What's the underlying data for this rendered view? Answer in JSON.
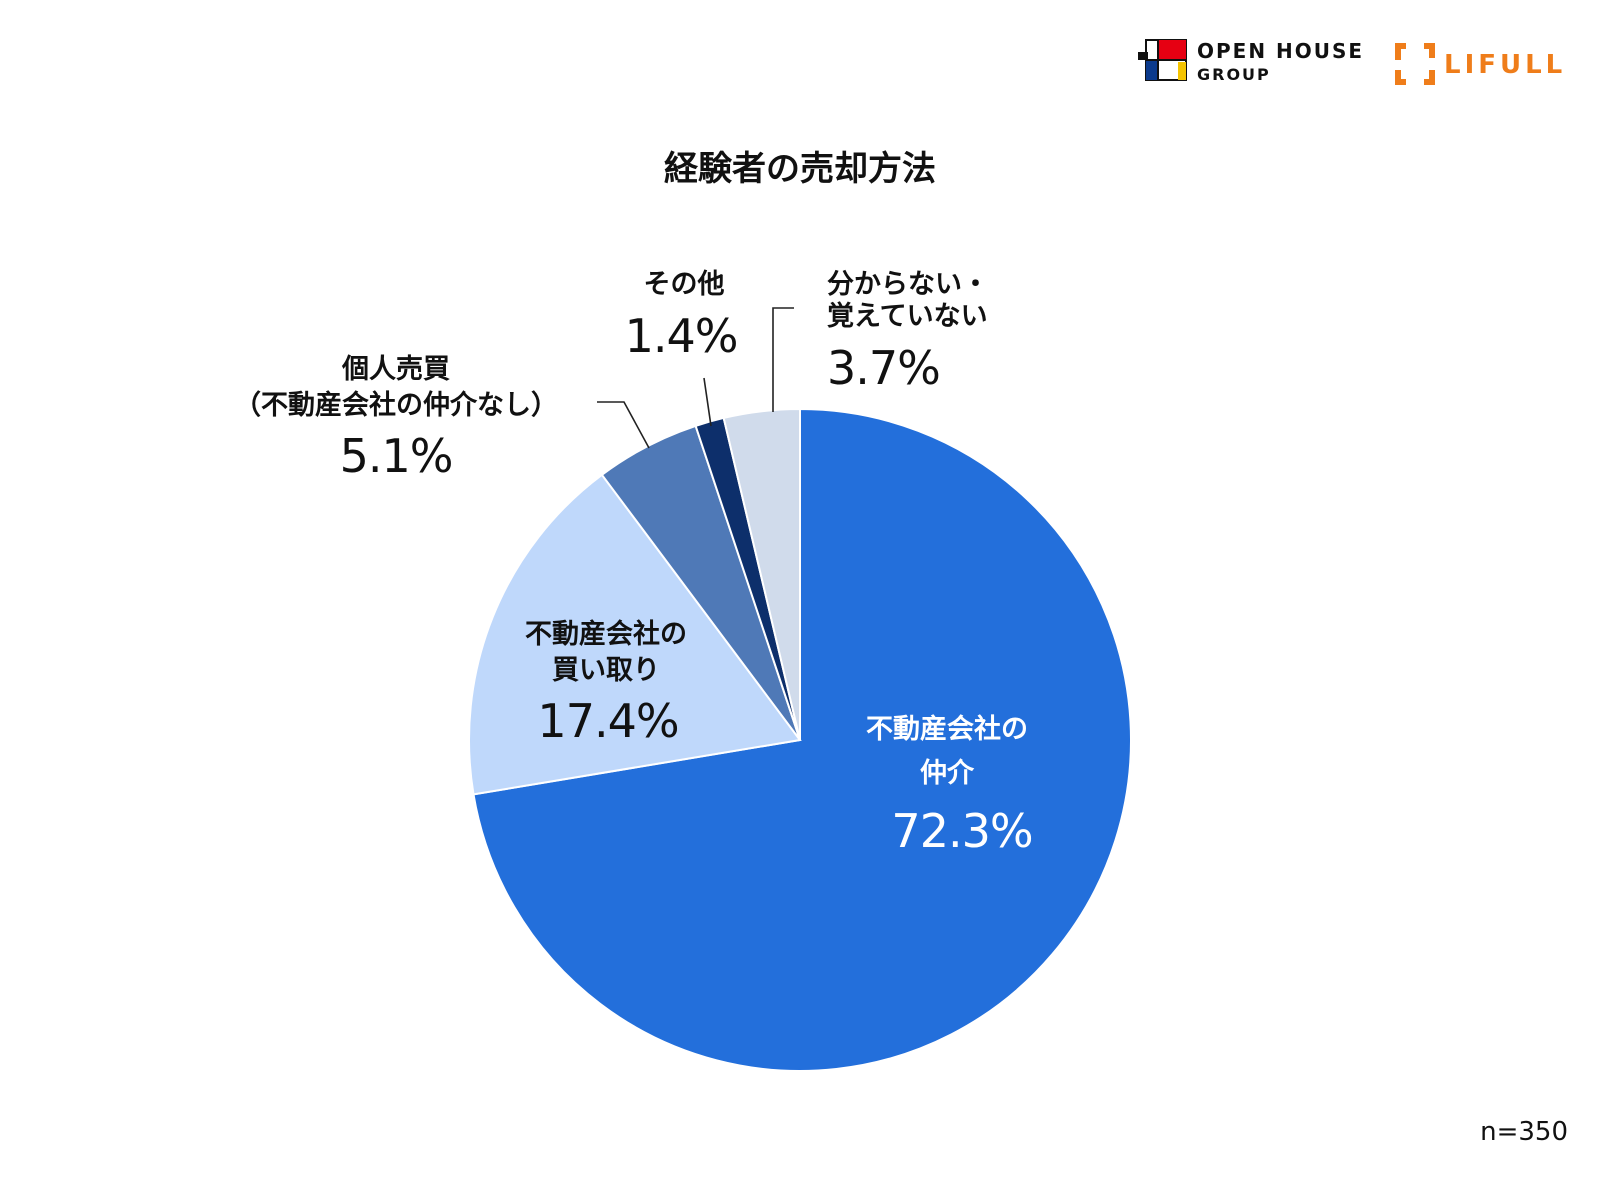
{
  "logos": {
    "open_house_line1": "OPEN HOUSE",
    "open_house_line2": "GROUP",
    "lifull": "LIFULL",
    "colors": {
      "open_house_red": "#e60012",
      "open_house_blue": "#0b3a8c",
      "open_house_yellow": "#f5c400",
      "lifull_orange": "#ef7d1a"
    }
  },
  "sample_size": "n=350",
  "chart_data": {
    "type": "pie",
    "title": "経験者の売却方法",
    "start": "12 o'clock",
    "direction": "clockwise",
    "slices": [
      {
        "label_lines": [
          "不動産会社の",
          "仲介"
        ],
        "value": 72.3,
        "value_label": "72.3%",
        "color": "#236fdb",
        "label_color": "#ffffff"
      },
      {
        "label_lines": [
          "不動産会社の",
          "買い取り"
        ],
        "value": 17.4,
        "value_label": "17.4%",
        "color": "#bfd8fb",
        "label_color": "#111111"
      },
      {
        "label_lines": [
          "個人売買",
          "（不動産会社の仲介なし）"
        ],
        "value": 5.1,
        "value_label": "5.1%",
        "color": "#4f79b7",
        "label_color": "#111111"
      },
      {
        "label_lines": [
          "その他"
        ],
        "value": 1.4,
        "value_label": "1.4%",
        "color": "#0d2f6b",
        "label_color": "#111111"
      },
      {
        "label_lines": [
          "分からない・",
          "覚えていない"
        ],
        "value": 3.7,
        "value_label": "3.7%",
        "color": "#d0dbeb",
        "label_color": "#111111"
      }
    ]
  }
}
